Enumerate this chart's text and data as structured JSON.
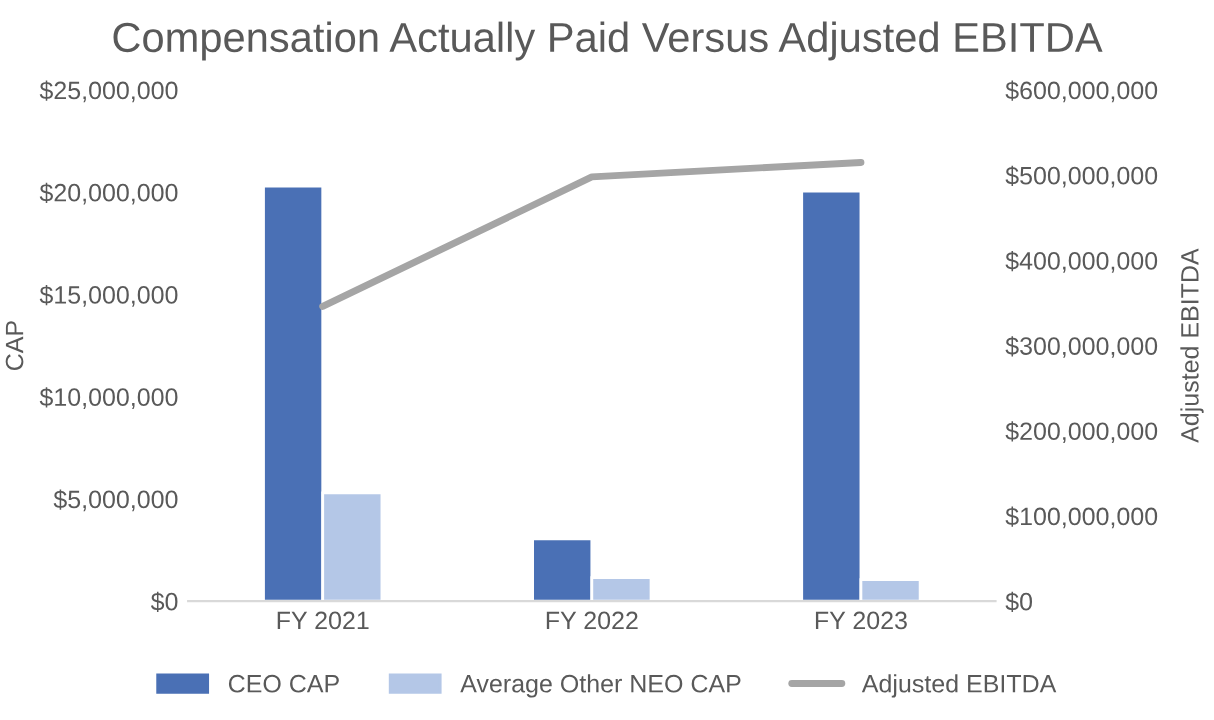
{
  "chart_data": {
    "type": "bar",
    "title": "Compensation Actually Paid Versus Adjusted EBITDA",
    "categories": [
      "FY 2021",
      "FY 2022",
      "FY 2023"
    ],
    "series": [
      {
        "name": "CEO CAP",
        "color": "#4a70b5",
        "values": [
          20300000,
          3050000,
          20050000
        ]
      },
      {
        "name": "Average Other NEO CAP",
        "color": "#b4c7e7",
        "values": [
          5300000,
          1150000,
          1050000
        ]
      },
      {
        "name": "Adjusted EBITDA",
        "type": "line",
        "axis": "y2",
        "color": "#a5a5a5",
        "values": [
          346000000,
          498000000,
          515000000
        ]
      }
    ],
    "ylabel": "CAP",
    "y2label": "Adjusted EBITDA",
    "ylim": [
      0,
      25000000
    ],
    "yticks": [
      {
        "value": 0,
        "label": "$0"
      },
      {
        "value": 5000000,
        "label": "$5,000,000"
      },
      {
        "value": 10000000,
        "label": "$10,000,000"
      },
      {
        "value": 15000000,
        "label": "$15,000,000"
      },
      {
        "value": 20000000,
        "label": "$20,000,000"
      },
      {
        "value": 25000000,
        "label": "$25,000,000"
      }
    ],
    "y2lim": [
      0,
      600000000
    ],
    "y2ticks": [
      {
        "value": 0,
        "label": "$0"
      },
      {
        "value": 100000000,
        "label": "$100,000,000"
      },
      {
        "value": 200000000,
        "label": "$200,000,000"
      },
      {
        "value": 300000000,
        "label": "$300,000,000"
      },
      {
        "value": 400000000,
        "label": "$400,000,000"
      },
      {
        "value": 500000000,
        "label": "$500,000,000"
      },
      {
        "value": 600000000,
        "label": "$600,000,000"
      }
    ],
    "legend": "bottom",
    "grid": false
  }
}
